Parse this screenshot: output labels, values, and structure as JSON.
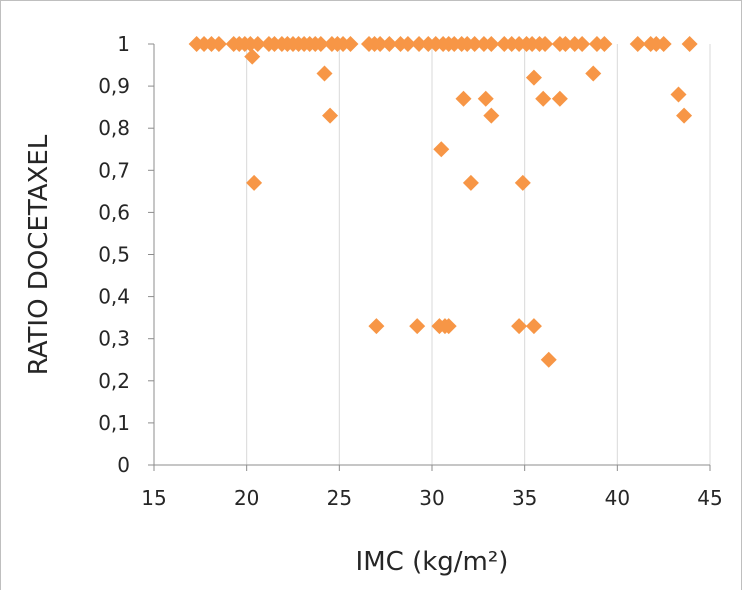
{
  "chart_data": {
    "type": "scatter",
    "xlabel": "IMC (kg/m²)",
    "ylabel": "RATIO DOCETAXEL",
    "xlim": [
      15,
      45
    ],
    "ylim": [
      0,
      1
    ],
    "x_ticks": [
      "15",
      "20",
      "25",
      "30",
      "35",
      "40",
      "45"
    ],
    "y_ticks": [
      "0",
      "0,1",
      "0,2",
      "0,3",
      "0,4",
      "0,5",
      "0,6",
      "0,7",
      "0,8",
      "0,9",
      "1"
    ],
    "grid": "vertical",
    "marker": "diamond",
    "color": "#F79646",
    "series": [
      {
        "points": [
          [
            17.3,
            1
          ],
          [
            17.7,
            1
          ],
          [
            18.1,
            1
          ],
          [
            18.5,
            1
          ],
          [
            19.3,
            1
          ],
          [
            19.6,
            1
          ],
          [
            19.9,
            1
          ],
          [
            20.2,
            1
          ],
          [
            20.6,
            1
          ],
          [
            21.2,
            1
          ],
          [
            21.5,
            1
          ],
          [
            21.9,
            1
          ],
          [
            22.2,
            1
          ],
          [
            22.5,
            1
          ],
          [
            22.8,
            1
          ],
          [
            23.1,
            1
          ],
          [
            23.4,
            1
          ],
          [
            23.7,
            1
          ],
          [
            24.0,
            1
          ],
          [
            24.6,
            1
          ],
          [
            24.9,
            1
          ],
          [
            25.2,
            1
          ],
          [
            25.6,
            1
          ],
          [
            26.6,
            1
          ],
          [
            26.9,
            1
          ],
          [
            27.2,
            1
          ],
          [
            27.7,
            1
          ],
          [
            28.3,
            1
          ],
          [
            28.7,
            1
          ],
          [
            29.3,
            1
          ],
          [
            29.8,
            1
          ],
          [
            30.2,
            1
          ],
          [
            30.6,
            1
          ],
          [
            30.9,
            1
          ],
          [
            31.2,
            1
          ],
          [
            31.6,
            1
          ],
          [
            31.9,
            1
          ],
          [
            32.3,
            1
          ],
          [
            32.8,
            1
          ],
          [
            33.2,
            1
          ],
          [
            33.9,
            1
          ],
          [
            34.3,
            1
          ],
          [
            34.7,
            1
          ],
          [
            35.1,
            1
          ],
          [
            35.4,
            1
          ],
          [
            35.8,
            1
          ],
          [
            36.1,
            1
          ],
          [
            36.9,
            1
          ],
          [
            37.2,
            1
          ],
          [
            37.7,
            1
          ],
          [
            38.1,
            1
          ],
          [
            38.9,
            1
          ],
          [
            39.3,
            1
          ],
          [
            41.1,
            1
          ],
          [
            41.8,
            1
          ],
          [
            42.1,
            1
          ],
          [
            42.5,
            1
          ],
          [
            43.9,
            1
          ],
          [
            20.3,
            0.97
          ],
          [
            24.2,
            0.93
          ],
          [
            24.5,
            0.83
          ],
          [
            20.4,
            0.67
          ],
          [
            30.5,
            0.75
          ],
          [
            31.7,
            0.87
          ],
          [
            32.1,
            0.67
          ],
          [
            32.9,
            0.87
          ],
          [
            33.2,
            0.83
          ],
          [
            34.9,
            0.67
          ],
          [
            35.5,
            0.92
          ],
          [
            36.0,
            0.87
          ],
          [
            36.9,
            0.87
          ],
          [
            38.7,
            0.93
          ],
          [
            43.3,
            0.88
          ],
          [
            43.6,
            0.83
          ],
          [
            27.0,
            0.33
          ],
          [
            29.2,
            0.33
          ],
          [
            30.4,
            0.33
          ],
          [
            30.7,
            0.33
          ],
          [
            30.9,
            0.33
          ],
          [
            34.7,
            0.33
          ],
          [
            35.5,
            0.33
          ],
          [
            36.3,
            0.25
          ]
        ]
      }
    ]
  }
}
